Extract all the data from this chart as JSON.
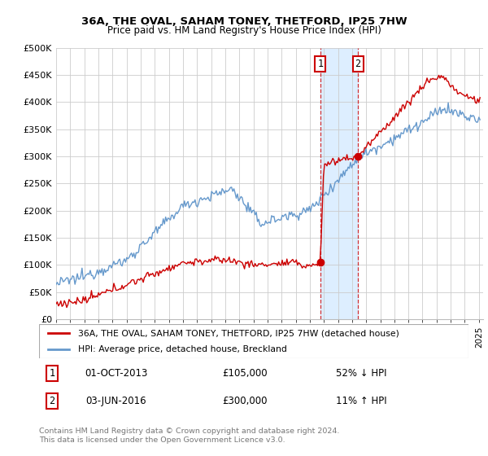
{
  "title": "36A, THE OVAL, SAHAM TONEY, THETFORD, IP25 7HW",
  "subtitle": "Price paid vs. HM Land Registry's House Price Index (HPI)",
  "ylim": [
    0,
    500000
  ],
  "yticks": [
    0,
    50000,
    100000,
    150000,
    200000,
    250000,
    300000,
    350000,
    400000,
    450000,
    500000
  ],
  "xlim_start": 1995.0,
  "xlim_end": 2025.3,
  "sale1_date": 2013.75,
  "sale1_price": 105000,
  "sale1_label": "1",
  "sale1_text": "01-OCT-2013",
  "sale1_pct": "52% ↓ HPI",
  "sale2_date": 2016.42,
  "sale2_price": 300000,
  "sale2_label": "2",
  "sale2_text": "03-JUN-2016",
  "sale2_pct": "11% ↑ HPI",
  "red_color": "#cc0000",
  "blue_color": "#6699cc",
  "shade_color": "#ddeeff",
  "grid_color": "#cccccc",
  "footnote": "Contains HM Land Registry data © Crown copyright and database right 2024.\nThis data is licensed under the Open Government Licence v3.0.",
  "legend_label_red": "36A, THE OVAL, SAHAM TONEY, THETFORD, IP25 7HW (detached house)",
  "legend_label_blue": "HPI: Average price, detached house, Breckland"
}
